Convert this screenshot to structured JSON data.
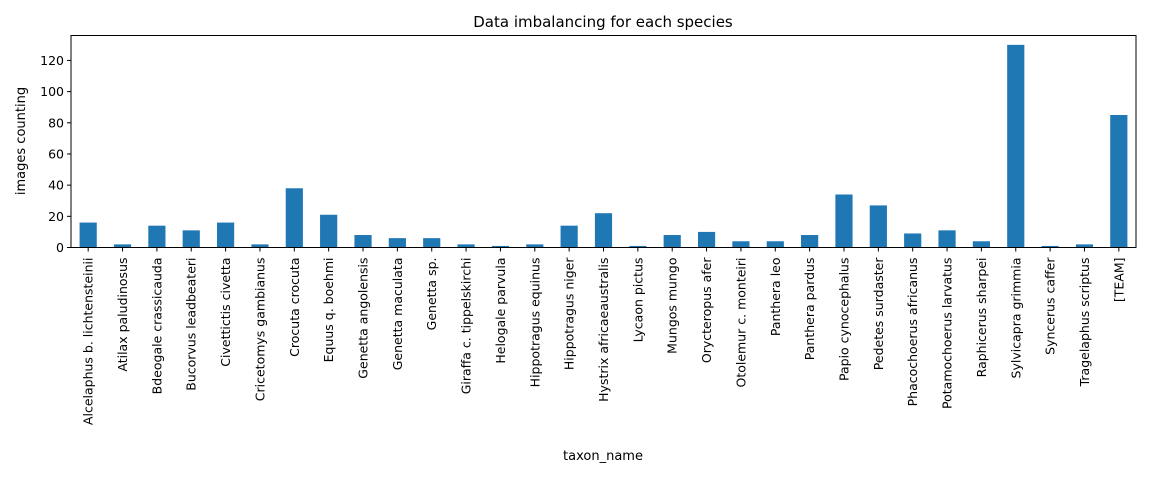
{
  "chart_data": {
    "type": "bar",
    "title": "Data imbalancing for each species",
    "xlabel": "taxon_name",
    "ylabel": "images counting",
    "ylim": [
      0,
      136
    ],
    "yticks": [
      0,
      20,
      40,
      60,
      80,
      100,
      120
    ],
    "grid": false,
    "bar_color": "#1f77b4",
    "categories": [
      "Alcelaphus b. lichtensteinii",
      "Atilax paludinosus",
      "Bdeogale crassicauda",
      "Bucorvus leadbeateri",
      "Civettictis civetta",
      "Cricetomys gambianus",
      "Crocuta crocuta",
      "Equus q. boehmi",
      "Genetta angolensis",
      "Genetta maculata",
      "Genetta sp.",
      "Giraffa c. tippelskirchi",
      "Helogale parvula",
      "Hippotragus equinus",
      "Hippotragus niger",
      "Hystrix africaeaustralis",
      "Lycaon pictus",
      "Mungos mungo",
      "Orycteropus afer",
      "Otolemur c. monteiri",
      "Panthera leo",
      "Panthera pardus",
      "Papio cynocephalus",
      "Pedetes surdaster",
      "Phacochoerus africanus",
      "Potamochoerus larvatus",
      "Raphicerus sharpei",
      "Sylvicapra grimmia",
      "Syncerus caffer",
      "Tragelaphus scriptus",
      "[TEAM]"
    ],
    "values": [
      16,
      2,
      14,
      11,
      16,
      2,
      38,
      21,
      8,
      6,
      6,
      2,
      1,
      2,
      14,
      22,
      1,
      8,
      10,
      4,
      4,
      8,
      34,
      27,
      9,
      11,
      4,
      130,
      1,
      2,
      85
    ]
  }
}
